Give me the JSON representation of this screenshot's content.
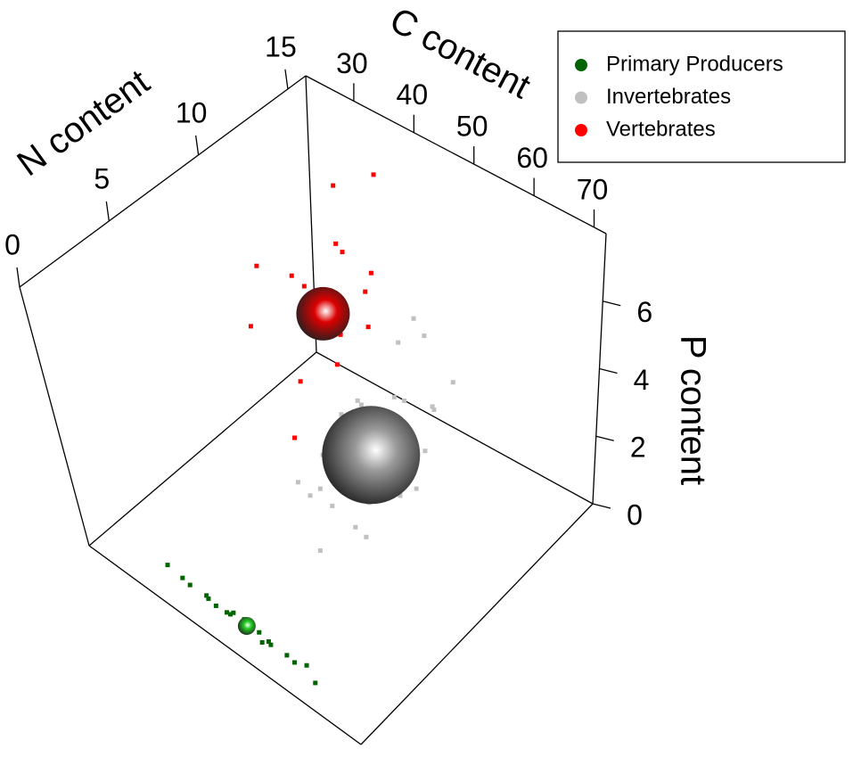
{
  "chart_data": {
    "type": "scatter3d",
    "x_label": "C content",
    "y_label": "N content",
    "z_label": "P content",
    "xlim": [
      22,
      72
    ],
    "xticks": [
      30,
      40,
      50,
      60,
      70
    ],
    "ylim": [
      0,
      16
    ],
    "yticks": [
      0,
      5,
      10,
      15
    ],
    "zlim": [
      0,
      8
    ],
    "zticks": [
      0,
      2,
      4,
      6
    ],
    "series": [
      {
        "name": "Primary Producers",
        "color": "#006400",
        "sphere_color": "#22cc22",
        "centroid": [
          48,
          1.2,
          0.2
        ],
        "x": [
          36,
          38,
          40,
          41,
          43,
          44,
          45,
          46,
          47,
          48,
          49,
          50,
          51,
          52,
          53,
          55,
          57,
          59,
          61,
          33
        ],
        "y": [
          1.3,
          1.1,
          1.4,
          1.2,
          1.0,
          1.3,
          1.2,
          1.1,
          1.4,
          1.2,
          1.0,
          1.3,
          1.1,
          1.2,
          1.0,
          1.3,
          1.1,
          1.2,
          1.0,
          1.4
        ],
        "z": [
          0.2,
          0.3,
          0.1,
          0.2,
          0.3,
          0.1,
          0.2,
          0.4,
          0.2,
          0.1,
          0.3,
          0.2,
          0.1,
          0.2,
          0.3,
          0.1,
          0.2,
          0.3,
          0.1,
          0.2
        ]
      },
      {
        "name": "Invertebrates",
        "color": "#c0c0c0",
        "sphere_color": "#9a9a9a",
        "centroid": [
          48,
          10,
          1.7
        ],
        "x": [
          42,
          44,
          46,
          47,
          48,
          49,
          50,
          51,
          52,
          53,
          54,
          45,
          47,
          49,
          51,
          43,
          46,
          50,
          53,
          55,
          48,
          44,
          52,
          47,
          49,
          41,
          56,
          50,
          46,
          48
        ],
        "y": [
          9,
          11,
          8,
          12,
          10,
          9,
          11,
          13,
          8,
          10,
          12,
          7,
          14,
          6,
          11,
          10,
          13,
          9,
          7,
          11,
          12,
          8,
          14,
          10,
          9,
          12,
          10,
          11,
          6,
          13
        ],
        "z": [
          1.5,
          2.0,
          0.8,
          2.5,
          1.2,
          3.0,
          1.8,
          2.2,
          0.5,
          1.0,
          2.8,
          1.4,
          3.5,
          0.6,
          1.6,
          2.4,
          1.9,
          0.9,
          1.3,
          2.1,
          4.2,
          1.1,
          2.6,
          0.7,
          3.8,
          1.7,
          1.5,
          0.4,
          2.3,
          4.5
        ]
      },
      {
        "name": "Vertebrates",
        "color": "#ff0000",
        "sphere_color": "#dd0000",
        "centroid": [
          35,
          12,
          3.8
        ],
        "x": [
          30,
          32,
          33,
          34,
          35,
          36,
          37,
          38,
          40,
          31,
          33,
          36,
          39,
          34,
          37,
          35,
          32,
          38
        ],
        "y": [
          10,
          14,
          12,
          13,
          11,
          15,
          12,
          14,
          13,
          9,
          11,
          10,
          12,
          15,
          9,
          13,
          14,
          11
        ],
        "z": [
          5.5,
          6.5,
          4.0,
          3.0,
          5.0,
          6.8,
          2.5,
          4.5,
          3.5,
          4.2,
          2.0,
          5.8,
          6.0,
          3.2,
          1.5,
          2.8,
          4.8,
          3.8
        ]
      }
    ]
  }
}
